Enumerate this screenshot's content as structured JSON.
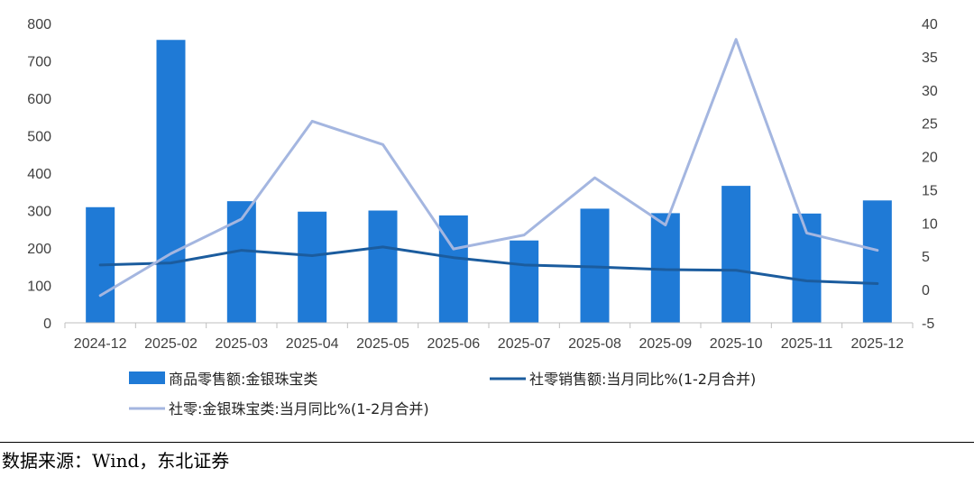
{
  "chart_data": {
    "type": "bar",
    "categories": [
      "2024-12",
      "2025-02",
      "2025-03",
      "2025-04",
      "2025-05",
      "2025-06",
      "2025-07",
      "2025-08",
      "2025-09",
      "2025-10",
      "2025-11",
      "2025-12"
    ],
    "series": [
      {
        "name": "商品零售额:金银珠宝类",
        "type": "bar",
        "axis": "left",
        "color": "#1f7ad6",
        "values": [
          309,
          756,
          325,
          297,
          300,
          287,
          220,
          305,
          293,
          366,
          292,
          327
        ]
      },
      {
        "name": "社零销售额:当月同比%(1-2月合并)",
        "type": "line",
        "axis": "right",
        "color": "#1b5c9e",
        "values": [
          3.7,
          4.0,
          5.9,
          5.1,
          6.4,
          4.8,
          3.7,
          3.4,
          3.0,
          2.9,
          1.3,
          0.9
        ]
      },
      {
        "name": "社零:金银珠宝类:当月同比%(1-2月合并)",
        "type": "line",
        "axis": "right",
        "color": "#a4b6e0",
        "values": [
          -0.9,
          5.4,
          10.6,
          25.3,
          21.8,
          6.1,
          8.2,
          16.8,
          9.7,
          37.6,
          8.5,
          5.9
        ]
      }
    ],
    "ylim": [
      0,
      800
    ],
    "y_ticks": [
      "0",
      "100",
      "200",
      "300",
      "400",
      "500",
      "600",
      "700",
      "800"
    ],
    "y2lim": [
      -5,
      40
    ],
    "y2_ticks": [
      "-5",
      "0",
      "5",
      "10",
      "15",
      "20",
      "25",
      "30",
      "35",
      "40"
    ],
    "grid": false,
    "legend": "bottom"
  },
  "source": "数据来源：Wind，东北证券"
}
